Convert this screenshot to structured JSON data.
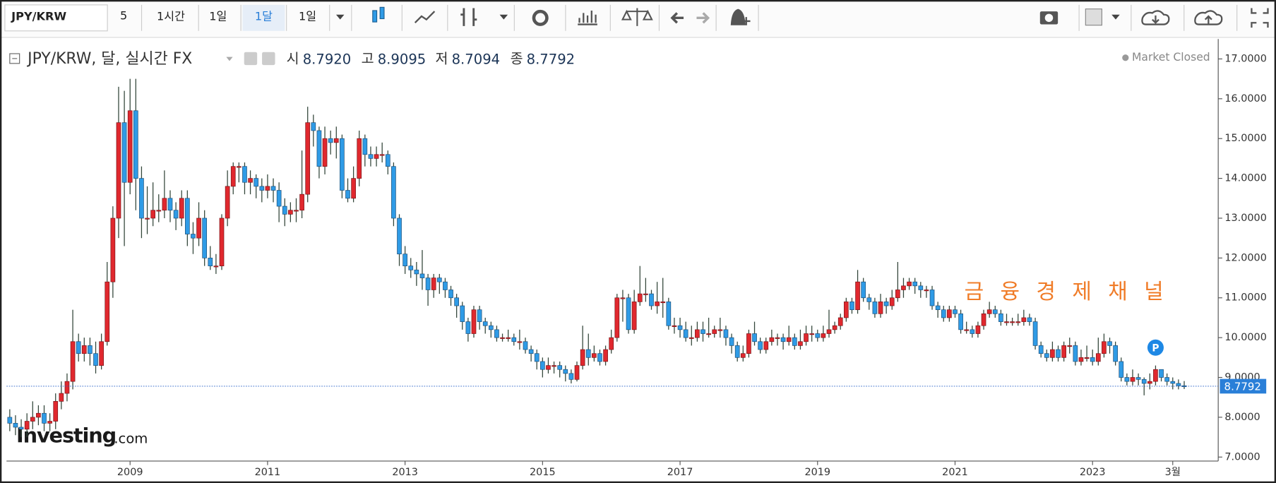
{
  "toolbar": {
    "symbol": "JPY/KRW",
    "intervals": [
      "5",
      "1시간",
      "1일",
      "1달",
      "1일"
    ]
  },
  "chart_data": {
    "type": "candlestick",
    "title": "JPY/KRW, 달, 실시간 FX",
    "ohlc_legend": [
      {
        "name": "시",
        "value": "8.7920"
      },
      {
        "name": "고",
        "value": "8.9095"
      },
      {
        "name": "저",
        "value": "8.7094"
      },
      {
        "name": "종",
        "value": "8.7792"
      }
    ],
    "status": "Market Closed",
    "watermark": "금 융 경 제 채 널",
    "logo": {
      "brand": "Investing",
      "suffix": ".com"
    },
    "marker": "P",
    "categories": [
      null,
      null,
      null,
      null,
      null,
      null,
      null,
      null,
      null,
      null,
      null,
      null,
      null,
      null,
      null,
      null,
      null,
      null,
      null,
      null,
      null,
      "2009",
      null,
      null,
      null,
      null,
      null,
      null,
      null,
      null,
      null,
      null,
      null,
      null,
      null,
      null,
      null,
      null,
      null,
      null,
      null,
      null,
      null,
      null,
      null,
      "2011",
      null,
      null,
      null,
      null,
      null,
      null,
      null,
      null,
      null,
      null,
      null,
      null,
      null,
      null,
      null,
      null,
      null,
      null,
      null,
      null,
      null,
      null,
      null,
      "2013",
      null,
      null,
      null,
      null,
      null,
      null,
      null,
      null,
      null,
      null,
      null,
      null,
      null,
      null,
      null,
      null,
      null,
      null,
      null,
      null,
      null,
      null,
      null,
      "2015",
      null,
      null,
      null,
      null,
      null,
      null,
      null,
      null,
      null,
      null,
      null,
      null,
      null,
      null,
      null,
      null,
      null,
      null,
      null,
      null,
      null,
      null,
      null,
      "2017",
      null,
      null,
      null,
      null,
      null,
      null,
      null,
      null,
      null,
      null,
      null,
      null,
      null,
      null,
      null,
      null,
      null,
      null,
      null,
      null,
      null,
      null,
      null,
      "2019",
      null,
      null,
      null,
      null,
      null,
      null,
      null,
      null,
      null,
      null,
      null,
      null,
      null,
      null,
      null,
      null,
      null,
      null,
      null,
      null,
      null,
      null,
      null,
      "2021",
      null,
      null,
      null,
      null,
      null,
      null,
      null,
      null,
      null,
      null,
      null,
      null,
      null,
      null,
      null,
      null,
      null,
      null,
      null,
      null,
      null,
      null,
      null,
      "2023",
      null,
      null,
      null,
      null,
      null,
      null,
      null,
      null,
      null,
      null,
      null,
      null,
      null,
      "3월",
      null,
      null
    ],
    "open": [
      8.0,
      7.85,
      7.75,
      7.7,
      7.9,
      8.0,
      8.1,
      7.85,
      7.9,
      8.4,
      8.6,
      8.9,
      9.9,
      9.6,
      9.8,
      9.6,
      9.3,
      9.9,
      11.4,
      13.0,
      15.4,
      13.9,
      15.7,
      14.0,
      13.0,
      13.0,
      13.2,
      13.2,
      13.5,
      13.2,
      13.0,
      13.5,
      12.6,
      12.5,
      13.0,
      12.0,
      11.8,
      11.8,
      13.0,
      13.8,
      14.3,
      14.3,
      13.9,
      14.0,
      13.8,
      13.7,
      13.8,
      13.7,
      13.3,
      13.1,
      13.2,
      13.2,
      13.6,
      15.4,
      15.2,
      14.3,
      15.0,
      14.9,
      15.0,
      13.7,
      13.5,
      14.0,
      15.0,
      14.6,
      14.5,
      14.6,
      14.6,
      14.3,
      13.0,
      12.1,
      11.8,
      11.7,
      11.6,
      11.5,
      11.2,
      11.5,
      11.4,
      11.2,
      11.0,
      10.8,
      10.4,
      10.1,
      10.7,
      10.4,
      10.3,
      10.2,
      10.0,
      10.0,
      10.0,
      9.9,
      9.9,
      9.7,
      9.6,
      9.4,
      9.2,
      9.3,
      9.3,
      9.2,
      9.1,
      8.95,
      9.3,
      9.7,
      9.5,
      9.6,
      9.4,
      9.7,
      10.0,
      11.0,
      11.0,
      10.2,
      10.9,
      11.1,
      11.1,
      10.8,
      10.9,
      10.9,
      10.3,
      10.3,
      10.2,
      10.0,
      10.0,
      10.2,
      10.1,
      10.1,
      10.2,
      10.2,
      10.0,
      9.8,
      9.5,
      9.6,
      10.1,
      9.9,
      9.7,
      9.9,
      10.0,
      10.0,
      9.9,
      10.0,
      9.8,
      9.9,
      10.1,
      10.1,
      10.0,
      10.1,
      10.2,
      10.3,
      10.5,
      10.9,
      10.7,
      11.4,
      11.0,
      10.9,
      10.6,
      10.9,
      10.8,
      11.0,
      11.2,
      11.3,
      11.4,
      11.3,
      11.2,
      11.2,
      10.8,
      10.7,
      10.5,
      10.7,
      10.6,
      10.2,
      10.2,
      10.1,
      10.3,
      10.6,
      10.7,
      10.6,
      10.4,
      10.4,
      10.4,
      10.4,
      10.5,
      10.4,
      9.8,
      9.6,
      9.5,
      9.7,
      9.5,
      9.8,
      9.8,
      9.4,
      9.5,
      9.5,
      9.4,
      9.6,
      9.9,
      9.8,
      9.4,
      9.0,
      8.9,
      9.0,
      8.95,
      8.85,
      8.9,
      9.2,
      9.0,
      8.9,
      8.85,
      8.792
    ],
    "high": [
      8.2,
      8.05,
      7.95,
      8.1,
      8.4,
      8.3,
      8.3,
      8.1,
      8.6,
      8.9,
      9.1,
      10.7,
      10.1,
      10.0,
      10.0,
      9.9,
      10.1,
      11.9,
      13.3,
      16.3,
      16.2,
      16.5,
      16.5,
      14.3,
      13.8,
      13.9,
      13.6,
      14.2,
      13.7,
      13.4,
      13.7,
      13.7,
      12.9,
      13.4,
      13.2,
      12.3,
      12.1,
      13.1,
      14.2,
      14.4,
      14.4,
      14.4,
      14.2,
      14.1,
      14.0,
      14.1,
      14.0,
      13.9,
      13.5,
      13.4,
      13.5,
      14.7,
      15.8,
      15.6,
      15.3,
      15.3,
      15.2,
      15.3,
      15.1,
      14.0,
      14.3,
      15.2,
      15.1,
      14.8,
      14.8,
      14.9,
      14.7,
      14.4,
      13.1,
      12.3,
      12.0,
      11.9,
      12.2,
      11.6,
      11.6,
      11.6,
      11.5,
      11.3,
      11.1,
      10.9,
      10.5,
      10.8,
      10.8,
      10.5,
      10.4,
      10.3,
      10.1,
      10.2,
      10.1,
      10.2,
      10.0,
      9.8,
      9.7,
      9.5,
      9.5,
      9.4,
      9.4,
      9.3,
      9.2,
      9.4,
      10.3,
      10.1,
      9.8,
      9.7,
      9.8,
      10.2,
      11.1,
      11.2,
      11.1,
      11.2,
      11.8,
      11.5,
      11.2,
      11.4,
      11.5,
      11.0,
      10.5,
      10.5,
      10.4,
      10.3,
      10.4,
      10.4,
      10.5,
      10.3,
      10.5,
      10.3,
      10.1,
      9.9,
      9.8,
      10.2,
      10.4,
      10.0,
      10.0,
      10.2,
      10.1,
      10.1,
      10.3,
      10.1,
      10.2,
      10.3,
      10.3,
      10.2,
      10.3,
      10.7,
      10.4,
      10.6,
      11.0,
      11.0,
      11.7,
      11.5,
      11.1,
      11.0,
      11.1,
      11.0,
      11.2,
      11.9,
      11.5,
      11.5,
      11.5,
      11.4,
      11.3,
      11.3,
      10.9,
      10.8,
      10.8,
      10.8,
      10.7,
      10.4,
      10.3,
      10.4,
      10.7,
      10.9,
      10.8,
      10.7,
      10.6,
      10.5,
      10.6,
      10.7,
      10.6,
      10.5,
      9.9,
      9.7,
      9.9,
      9.8,
      9.9,
      10.0,
      9.9,
      9.7,
      9.8,
      9.7,
      10.0,
      10.1,
      10.0,
      9.9,
      9.5,
      9.1,
      9.2,
      9.1,
      9.0,
      9.1,
      9.3,
      9.2,
      9.1,
      9.0,
      8.95,
      8.9095
    ],
    "low": [
      7.65,
      7.55,
      7.5,
      7.5,
      7.7,
      7.8,
      7.65,
      7.65,
      7.7,
      8.2,
      8.4,
      8.7,
      9.4,
      9.4,
      9.3,
      9.1,
      9.2,
      9.8,
      11.0,
      12.5,
      12.3,
      13.6,
      13.2,
      12.5,
      12.6,
      12.8,
      12.9,
      13.0,
      12.9,
      12.7,
      12.8,
      12.3,
      12.1,
      12.3,
      11.8,
      11.7,
      11.6,
      11.7,
      12.8,
      13.6,
      13.9,
      13.6,
      13.6,
      13.5,
      13.4,
      13.5,
      13.4,
      12.9,
      12.8,
      12.9,
      12.9,
      13.0,
      13.4,
      14.8,
      14.0,
      14.1,
      14.6,
      14.5,
      13.5,
      13.4,
      13.4,
      13.8,
      14.3,
      14.3,
      14.3,
      14.4,
      14.1,
      12.8,
      11.8,
      11.6,
      11.5,
      11.3,
      11.2,
      10.8,
      11.0,
      11.1,
      11.0,
      10.8,
      10.5,
      10.2,
      9.9,
      10.0,
      10.2,
      10.1,
      10.0,
      9.9,
      9.9,
      9.9,
      9.8,
      9.7,
      9.6,
      9.4,
      9.2,
      9.0,
      9.1,
      9.1,
      9.0,
      8.9,
      8.85,
      8.9,
      9.2,
      9.3,
      9.4,
      9.3,
      9.3,
      9.6,
      9.9,
      10.4,
      10.1,
      10.1,
      10.8,
      10.9,
      10.7,
      10.6,
      10.5,
      10.2,
      10.1,
      10.0,
      9.9,
      9.8,
      9.9,
      9.9,
      10.0,
      10.0,
      10.0,
      9.8,
      9.6,
      9.4,
      9.4,
      9.5,
      9.8,
      9.6,
      9.6,
      9.8,
      9.8,
      9.7,
      9.8,
      9.7,
      9.7,
      9.8,
      9.9,
      9.9,
      9.9,
      10.0,
      10.1,
      10.2,
      10.4,
      10.6,
      10.6,
      10.9,
      10.7,
      10.5,
      10.5,
      10.6,
      10.7,
      10.9,
      11.0,
      11.2,
      11.1,
      11.0,
      11.0,
      10.7,
      10.5,
      10.4,
      10.4,
      10.5,
      10.1,
      10.1,
      10.0,
      10.0,
      10.2,
      10.5,
      10.5,
      10.3,
      10.3,
      10.3,
      10.3,
      10.3,
      10.3,
      9.7,
      9.5,
      9.4,
      9.4,
      9.4,
      9.4,
      9.6,
      9.3,
      9.3,
      9.4,
      9.3,
      9.3,
      9.5,
      9.6,
      9.3,
      8.9,
      8.8,
      8.8,
      8.8,
      8.55,
      8.7,
      8.8,
      8.9,
      8.8,
      8.7,
      8.7,
      8.7094
    ],
    "close": [
      7.85,
      7.75,
      7.7,
      7.9,
      8.0,
      8.1,
      7.85,
      7.9,
      8.4,
      8.6,
      8.9,
      9.9,
      9.6,
      9.8,
      9.6,
      9.3,
      9.9,
      11.4,
      13.0,
      15.4,
      13.9,
      15.7,
      14.0,
      13.0,
      13.0,
      13.2,
      13.2,
      13.5,
      13.2,
      13.0,
      13.5,
      12.6,
      12.5,
      13.0,
      12.0,
      11.8,
      11.8,
      13.0,
      13.8,
      14.3,
      14.3,
      13.9,
      14.0,
      13.8,
      13.7,
      13.8,
      13.7,
      13.3,
      13.1,
      13.2,
      13.2,
      13.6,
      15.4,
      15.2,
      14.3,
      15.0,
      14.9,
      15.0,
      13.7,
      13.5,
      14.0,
      15.0,
      14.6,
      14.5,
      14.6,
      14.6,
      14.3,
      13.0,
      12.1,
      11.8,
      11.7,
      11.6,
      11.5,
      11.2,
      11.5,
      11.4,
      11.2,
      11.0,
      10.8,
      10.4,
      10.1,
      10.7,
      10.4,
      10.3,
      10.2,
      10.0,
      10.0,
      10.0,
      9.9,
      9.9,
      9.7,
      9.6,
      9.4,
      9.2,
      9.3,
      9.3,
      9.2,
      9.1,
      8.95,
      9.3,
      9.7,
      9.5,
      9.6,
      9.4,
      9.7,
      10.0,
      11.0,
      11.0,
      10.2,
      10.9,
      11.1,
      11.1,
      10.8,
      10.9,
      10.9,
      10.3,
      10.3,
      10.2,
      10.0,
      10.0,
      10.2,
      10.1,
      10.1,
      10.2,
      10.2,
      10.0,
      9.8,
      9.5,
      9.6,
      10.1,
      9.9,
      9.7,
      9.9,
      10.0,
      10.0,
      9.9,
      10.0,
      9.8,
      9.9,
      10.1,
      10.1,
      10.0,
      10.1,
      10.2,
      10.3,
      10.5,
      10.9,
      10.7,
      11.4,
      11.0,
      10.9,
      10.6,
      10.9,
      10.8,
      11.0,
      11.2,
      11.3,
      11.4,
      11.3,
      11.2,
      11.2,
      10.8,
      10.7,
      10.5,
      10.7,
      10.6,
      10.2,
      10.2,
      10.1,
      10.3,
      10.6,
      10.7,
      10.6,
      10.4,
      10.4,
      10.4,
      10.4,
      10.5,
      10.4,
      9.8,
      9.6,
      9.5,
      9.7,
      9.5,
      9.8,
      9.8,
      9.4,
      9.5,
      9.5,
      9.4,
      9.6,
      9.9,
      9.8,
      9.4,
      9.0,
      8.9,
      9.0,
      8.95,
      8.85,
      8.9,
      9.2,
      9.0,
      8.9,
      8.85,
      8.792,
      8.7792
    ],
    "up_color": "#e0282e",
    "down_color": "#2f9be6",
    "wick_color": "#33463a",
    "ylim": [
      6.9,
      17.5
    ],
    "yticks": [
      {
        "value": 7,
        "label": "7.0000"
      },
      {
        "value": 8,
        "label": "8.0000"
      },
      {
        "value": 9,
        "label": "9.0000"
      },
      {
        "value": 10,
        "label": "10.0000"
      },
      {
        "value": 11,
        "label": "11.0000"
      },
      {
        "value": 12,
        "label": "12.0000"
      },
      {
        "value": 13,
        "label": "13.0000"
      },
      {
        "value": 14,
        "label": "14.0000"
      },
      {
        "value": 15,
        "label": "15.0000"
      },
      {
        "value": 16,
        "label": "16.0000"
      },
      {
        "value": 17,
        "label": "17.0000"
      }
    ],
    "grid": false,
    "last_price_line": true
  }
}
